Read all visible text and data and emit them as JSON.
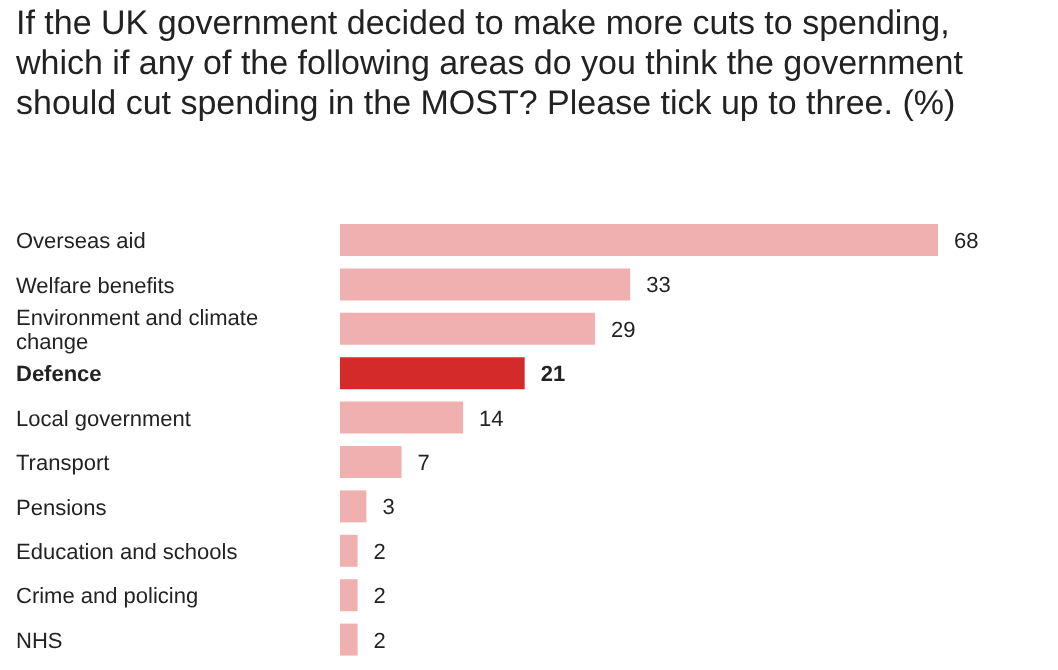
{
  "chart_data": {
    "type": "bar",
    "orientation": "horizontal",
    "title": "If the UK government decided to make more cuts to spending, which if any of the following areas do you think the government should cut spending in the MOST? Please tick up to three. (%)",
    "categories": [
      "Overseas aid",
      "Welfare benefits",
      "Environment and climate change",
      "Defence",
      "Local government",
      "Transport",
      "Pensions",
      "Education and schools",
      "Crime and policing",
      "NHS"
    ],
    "values": [
      68,
      33,
      29,
      21,
      14,
      7,
      3,
      2,
      2,
      2
    ],
    "colors": [
      "#f0b0b0",
      "#f0b0b0",
      "#f0b0b0",
      "#d42a2a",
      "#f0b0b0",
      "#f0b0b0",
      "#f0b0b0",
      "#f0b0b0",
      "#f0b0b0",
      "#f0b0b0"
    ],
    "data_labels": true
  }
}
